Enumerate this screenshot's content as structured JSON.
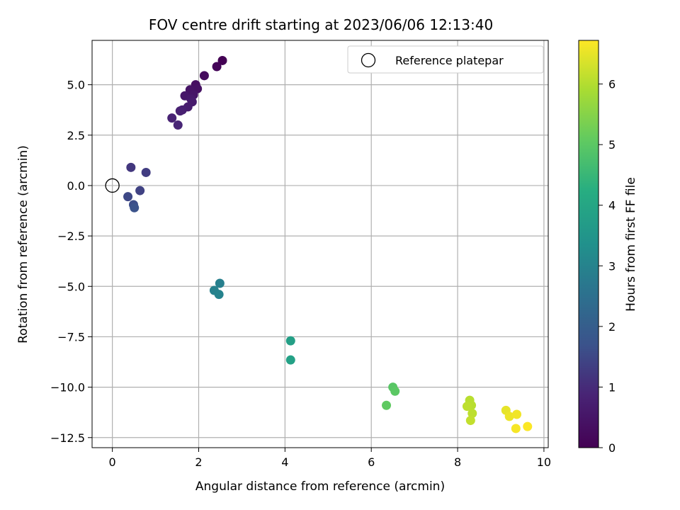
{
  "chart_data": {
    "type": "scatter",
    "title": "FOV centre drift starting at 2023/06/06 12:13:40",
    "xlabel": "Angular distance from reference (arcmin)",
    "ylabel": "Rotation from reference (arcmin)",
    "xlim": [
      -0.47,
      10.1
    ],
    "ylim": [
      -13.0,
      7.2
    ],
    "xticks": [
      0,
      2,
      4,
      6,
      8,
      10
    ],
    "yticks": [
      -12.5,
      -10.0,
      -7.5,
      -5.0,
      -2.5,
      0.0,
      2.5,
      5.0
    ],
    "xtick_labels": [
      "0",
      "2",
      "4",
      "6",
      "8",
      "10"
    ],
    "ytick_labels": [
      "−12.5",
      "−10.0",
      "−7.5",
      "−5.0",
      "−2.5",
      "0.0",
      "2.5",
      "5.0"
    ],
    "grid": true,
    "legend": {
      "placement": "top-right",
      "label": "Reference platepar"
    },
    "reference_point": {
      "x": 0,
      "y": 0
    },
    "colorbar": {
      "label": "Hours from first FF file",
      "colormap": "viridis",
      "range": [
        0,
        6.72
      ],
      "ticks": [
        0,
        1,
        2,
        3,
        4,
        5,
        6
      ],
      "tick_labels": [
        "0",
        "1",
        "2",
        "3",
        "4",
        "5",
        "6"
      ]
    },
    "series": [
      {
        "points": [
          {
            "x": 2.55,
            "y": 6.2,
            "c": 0.0
          },
          {
            "x": 2.42,
            "y": 5.9,
            "c": 0.1
          },
          {
            "x": 2.13,
            "y": 5.45,
            "c": 0.25
          },
          {
            "x": 1.93,
            "y": 5.0,
            "c": 0.35
          },
          {
            "x": 1.97,
            "y": 4.8,
            "c": 0.4
          },
          {
            "x": 1.8,
            "y": 4.75,
            "c": 0.45
          },
          {
            "x": 1.88,
            "y": 4.5,
            "c": 0.5
          },
          {
            "x": 1.68,
            "y": 4.45,
            "c": 0.55
          },
          {
            "x": 1.82,
            "y": 4.3,
            "c": 0.6
          },
          {
            "x": 1.85,
            "y": 4.15,
            "c": 0.65
          },
          {
            "x": 1.75,
            "y": 3.9,
            "c": 0.7
          },
          {
            "x": 1.62,
            "y": 3.75,
            "c": 0.75
          },
          {
            "x": 1.57,
            "y": 3.7,
            "c": 0.8
          },
          {
            "x": 1.38,
            "y": 3.35,
            "c": 0.85
          },
          {
            "x": 1.52,
            "y": 3.0,
            "c": 0.9
          },
          {
            "x": 0.43,
            "y": 0.9,
            "c": 1.2
          },
          {
            "x": 0.78,
            "y": 0.65,
            "c": 1.3
          },
          {
            "x": 0.64,
            "y": -0.25,
            "c": 1.4
          },
          {
            "x": 0.36,
            "y": -0.55,
            "c": 1.5
          },
          {
            "x": 0.49,
            "y": -0.95,
            "c": 1.6
          },
          {
            "x": 0.51,
            "y": -1.1,
            "c": 1.7
          },
          {
            "x": 2.49,
            "y": -4.85,
            "c": 2.9
          },
          {
            "x": 2.36,
            "y": -5.2,
            "c": 2.95
          },
          {
            "x": 2.47,
            "y": -5.4,
            "c": 3.0
          },
          {
            "x": 4.13,
            "y": -7.7,
            "c": 3.8
          },
          {
            "x": 4.13,
            "y": -8.65,
            "c": 3.85
          },
          {
            "x": 6.5,
            "y": -10.0,
            "c": 4.95
          },
          {
            "x": 6.55,
            "y": -10.2,
            "c": 5.0
          },
          {
            "x": 6.35,
            "y": -10.9,
            "c": 5.05
          },
          {
            "x": 8.28,
            "y": -10.65,
            "c": 6.05
          },
          {
            "x": 8.32,
            "y": -10.9,
            "c": 6.05
          },
          {
            "x": 8.22,
            "y": -10.95,
            "c": 6.1
          },
          {
            "x": 8.34,
            "y": -11.3,
            "c": 6.1
          },
          {
            "x": 8.3,
            "y": -11.65,
            "c": 6.15
          },
          {
            "x": 9.12,
            "y": -11.15,
            "c": 6.5
          },
          {
            "x": 9.2,
            "y": -11.45,
            "c": 6.55
          },
          {
            "x": 9.37,
            "y": -11.35,
            "c": 6.6
          },
          {
            "x": 9.35,
            "y": -12.05,
            "c": 6.65
          },
          {
            "x": 9.62,
            "y": -11.95,
            "c": 6.7
          }
        ]
      }
    ]
  }
}
